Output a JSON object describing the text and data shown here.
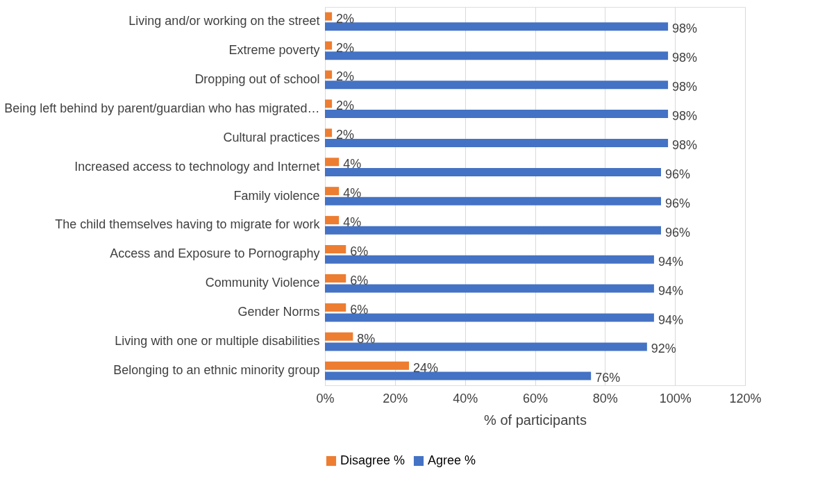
{
  "chart_data": {
    "type": "bar",
    "orientation": "horizontal",
    "categories": [
      "Living and/or working on the street",
      "Extreme poverty",
      "Dropping out of school",
      "Being left behind by parent/guardian who has migrated…",
      "Cultural practices",
      "Increased access to technology and Internet",
      "Family violence",
      "The child themselves having to migrate for work",
      "Access and Exposure to Pornography",
      "Community Violence",
      "Gender Norms",
      "Living with one or multiple disabilities",
      "Belonging to an ethnic minority group"
    ],
    "series": [
      {
        "name": "Disagree %",
        "color": "#ed7d31",
        "values": [
          2,
          2,
          2,
          2,
          2,
          4,
          4,
          4,
          6,
          6,
          6,
          8,
          24
        ],
        "value_labels": [
          "2%",
          "2%",
          "2%",
          "2%",
          "2%",
          "4%",
          "4%",
          "4%",
          "6%",
          "6%",
          "6%",
          "8%",
          "24%"
        ]
      },
      {
        "name": "Agree %",
        "color": "#4472c4",
        "values": [
          98,
          98,
          98,
          98,
          98,
          96,
          96,
          96,
          94,
          94,
          94,
          92,
          76
        ],
        "value_labels": [
          "98%",
          "98%",
          "98%",
          "98%",
          "98%",
          "96%",
          "96%",
          "96%",
          "94%",
          "94%",
          "94%",
          "92%",
          "76%"
        ]
      }
    ],
    "xlabel": "% of participants",
    "xlim": [
      0,
      120
    ],
    "xticks": [
      {
        "value": 0,
        "label": "0%"
      },
      {
        "value": 20,
        "label": "20%"
      },
      {
        "value": 40,
        "label": "40%"
      },
      {
        "value": 60,
        "label": "60%"
      },
      {
        "value": 80,
        "label": "80%"
      },
      {
        "value": 100,
        "label": "100%"
      },
      {
        "value": 120,
        "label": "120%"
      }
    ],
    "grid": "x",
    "legend": "bottom"
  }
}
